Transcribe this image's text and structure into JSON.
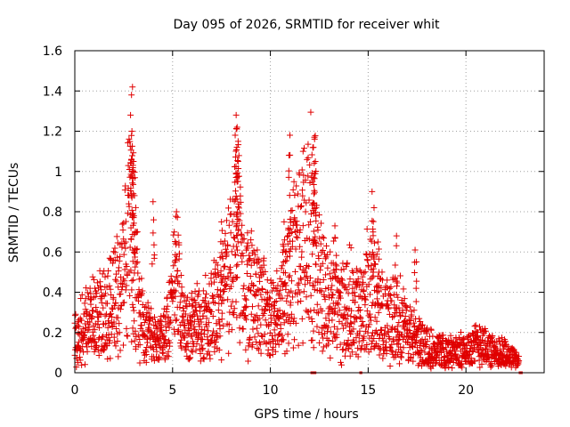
{
  "colors": {
    "series": "#e00000",
    "axis": "#000000",
    "grid": "#a0a0a0"
  },
  "chart_data": {
    "type": "scatter",
    "title": "Day 095 of 2026, SRMTID for receiver whit",
    "xlabel": "GPS time / hours",
    "ylabel": "SRMTID / TECUs",
    "xlim": [
      0,
      24
    ],
    "ylim": [
      0,
      1.6
    ],
    "xticks": [
      0,
      5,
      10,
      15,
      20
    ],
    "xtick_labels": [
      "0",
      "5",
      "10",
      "15",
      "20"
    ],
    "yticks": [
      0,
      0.2,
      0.4,
      0.6,
      0.8,
      1.0,
      1.2,
      1.4,
      1.6
    ],
    "ytick_labels": [
      "0",
      "0.2",
      "0.4",
      "0.6",
      "0.8",
      "1",
      "1.2",
      "1.4",
      "1.6"
    ],
    "grid": true,
    "marker": "plus",
    "sample_step_hours": 0.02,
    "series": [
      {
        "name": "SRMTID",
        "profile": [
          [
            0.0,
            0.18
          ],
          [
            0.5,
            0.22
          ],
          [
            1.0,
            0.28
          ],
          [
            1.5,
            0.3
          ],
          [
            2.0,
            0.35
          ],
          [
            2.5,
            0.45
          ],
          [
            2.8,
            0.7
          ],
          [
            3.0,
            0.6
          ],
          [
            3.3,
            0.3
          ],
          [
            3.8,
            0.2
          ],
          [
            4.2,
            0.15
          ],
          [
            4.6,
            0.2
          ],
          [
            5.0,
            0.35
          ],
          [
            5.2,
            0.5
          ],
          [
            5.5,
            0.25
          ],
          [
            6.0,
            0.22
          ],
          [
            6.5,
            0.25
          ],
          [
            7.0,
            0.3
          ],
          [
            7.5,
            0.35
          ],
          [
            8.0,
            0.55
          ],
          [
            8.3,
            0.7
          ],
          [
            8.6,
            0.45
          ],
          [
            9.0,
            0.4
          ],
          [
            9.5,
            0.35
          ],
          [
            10.0,
            0.25
          ],
          [
            10.5,
            0.3
          ],
          [
            11.0,
            0.5
          ],
          [
            11.5,
            0.6
          ],
          [
            12.0,
            0.7
          ],
          [
            12.3,
            0.65
          ],
          [
            12.7,
            0.4
          ],
          [
            13.5,
            0.3
          ],
          [
            14.0,
            0.35
          ],
          [
            14.5,
            0.3
          ],
          [
            15.0,
            0.4
          ],
          [
            15.5,
            0.3
          ],
          [
            16.0,
            0.25
          ],
          [
            16.5,
            0.3
          ],
          [
            17.0,
            0.2
          ],
          [
            18.0,
            0.13
          ],
          [
            19.0,
            0.1
          ],
          [
            20.0,
            0.11
          ],
          [
            20.8,
            0.15
          ],
          [
            21.5,
            0.09
          ],
          [
            22.0,
            0.1
          ],
          [
            22.7,
            0.05
          ]
        ],
        "spikes": [
          [
            2.95,
            1.42
          ],
          [
            2.9,
            1.38
          ],
          [
            2.85,
            1.28
          ],
          [
            2.92,
            1.2
          ],
          [
            3.0,
            1.05
          ],
          [
            2.95,
            0.97
          ],
          [
            3.05,
            0.88
          ],
          [
            8.25,
            1.28
          ],
          [
            8.3,
            1.22
          ],
          [
            8.2,
            1.18
          ],
          [
            8.35,
            1.05
          ],
          [
            8.3,
            0.95
          ],
          [
            11.0,
            1.18
          ],
          [
            10.95,
            1.08
          ],
          [
            12.25,
            1.17
          ],
          [
            12.2,
            1.12
          ],
          [
            12.3,
            1.05
          ],
          [
            12.15,
            0.95
          ],
          [
            15.2,
            0.9
          ],
          [
            15.3,
            0.82
          ],
          [
            15.5,
            0.65
          ],
          [
            16.45,
            0.68
          ],
          [
            17.4,
            0.61
          ],
          [
            4.0,
            0.85
          ],
          [
            5.2,
            0.8
          ],
          [
            7.5,
            0.75
          ],
          [
            10.7,
            0.75
          ],
          [
            13.3,
            0.73
          ]
        ],
        "line_spans": [
          [
            12.05,
            12.35
          ],
          [
            14.55,
            14.7
          ],
          [
            22.7,
            22.9
          ]
        ]
      }
    ]
  }
}
